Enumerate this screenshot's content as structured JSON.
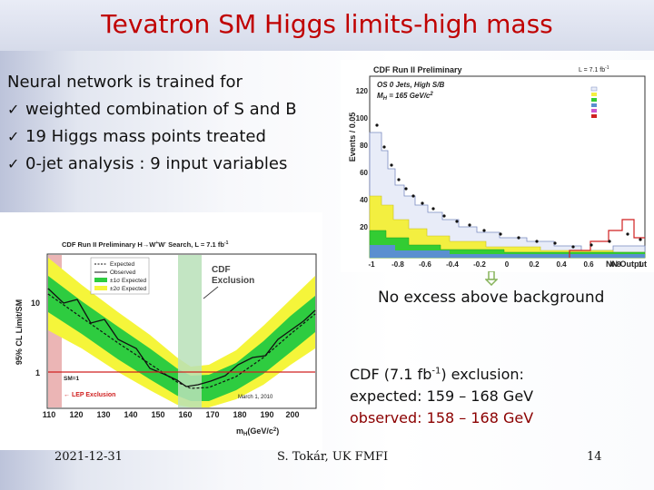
{
  "slide": {
    "title": "Tevatron SM Higgs limits-high mass",
    "intro": "Neural network is trained for",
    "bullets": [
      "weighted combination of S and B",
      "19 Higgs mass points treated",
      "0-jet analysis : 9 input variables"
    ],
    "no_excess": "No excess above background",
    "exclusion": {
      "line1_pre": "CDF (7.1 fb",
      "line1_sup": "-1",
      "line1_post": ") exclusion:",
      "expected": "expected: 159 – 168 GeV",
      "observed": "observed: 158 – 168 GeV"
    },
    "footer": {
      "date": "2021-12-31",
      "author": "S. Tokár, UK FMFI",
      "page": "14"
    },
    "colors": {
      "title": "#c00000",
      "observed": "#8b0000",
      "arrow": "#86b35a"
    }
  },
  "nn_plot": {
    "header": "CDF Run II Preliminary",
    "lumi": "L = 7.1 fb",
    "lumi_sup": "-1",
    "subtitle1": "OS 0 Jets, High S/B",
    "subtitle2": "M",
    "subtitle2_sub": "H",
    "subtitle2_post": " = 165 GeV/c",
    "subtitle2_sup": "2",
    "ylabel": "Events / 0.05",
    "xlabel": "NN Output",
    "xticks": [
      "-1",
      "-0.8",
      "-0.6",
      "-0.4",
      "-0.2",
      "0",
      "0.2",
      "0.4",
      "0.6",
      "0.8",
      "1"
    ],
    "yticks": [
      "20",
      "40",
      "60",
      "80",
      "100",
      "120"
    ]
  },
  "limit_plot": {
    "header": "CDF Run II Preliminary H→W",
    "header_sup1": "+",
    "header_mid": "W",
    "header_sup2": "-",
    "header_post": " Search, L = 7.1 fb",
    "header_sup3": "-1",
    "legend": [
      "Expected",
      "Observed",
      "±1σ Expected",
      "±2σ Expected"
    ],
    "cdf_exclusion1": "CDF",
    "cdf_exclusion2": "Exclusion",
    "sm_label": "SM=1",
    "lep_label": "← LEP Exclusion",
    "date": "March 1, 2010",
    "ylabel": "95% CL Limit/SM",
    "xlabel": "m",
    "xlabel_sub": "H",
    "xlabel_post": "(GeV/c",
    "xlabel_sup": "2",
    "xlabel_end": ")",
    "yticks": [
      "1",
      "10"
    ],
    "xticks": [
      "110",
      "120",
      "130",
      "140",
      "150",
      "160",
      "170",
      "180",
      "190",
      "200"
    ]
  }
}
